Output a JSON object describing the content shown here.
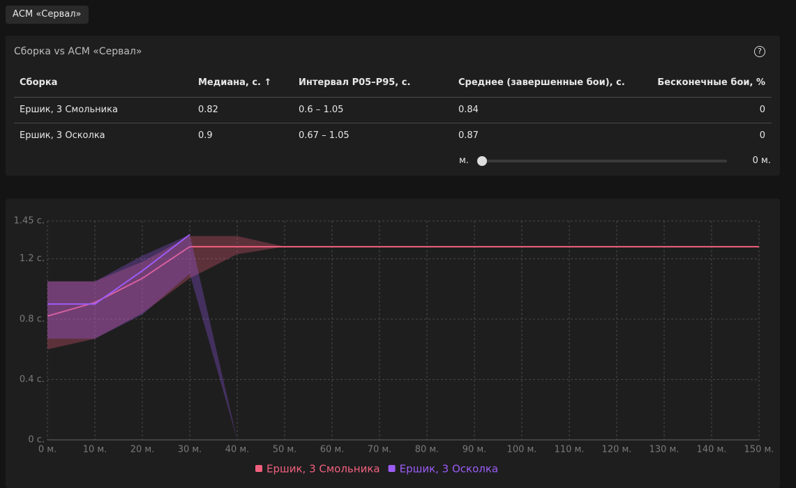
{
  "tag": "АСМ «Сервал»",
  "panel": {
    "title": "Сборка vs АСМ «Сервал»",
    "table": {
      "headers": [
        "Сборка",
        "Медиана, с. ↑",
        "Интервал P05–P95, с.",
        "Среднее (завершенные бои), с.",
        "Бесконечные бои, %"
      ],
      "rows": [
        [
          "Ершик, 3 Смольника",
          0.82,
          "0.6 – 1.05",
          0.84,
          0
        ],
        [
          "Ершик, 3 Осколка",
          0.9,
          "0.67 – 1.05",
          0.87,
          0
        ]
      ]
    },
    "slider": {
      "min_label": "м.",
      "value_label": "0 м."
    }
  },
  "chart_data": {
    "type": "line",
    "x": [
      0,
      10,
      20,
      30,
      40,
      50,
      60,
      70,
      80,
      90,
      100,
      110,
      120,
      130,
      140,
      150
    ],
    "xlim": [
      0,
      150
    ],
    "xticks": [
      {
        "value": 0,
        "label": "0 м."
      },
      {
        "value": 10,
        "label": "10 м."
      },
      {
        "value": 20,
        "label": "20 м."
      },
      {
        "value": 30,
        "label": "30 м."
      },
      {
        "value": 40,
        "label": "40 м."
      },
      {
        "value": 50,
        "label": "50 м."
      },
      {
        "value": 60,
        "label": "60 м."
      },
      {
        "value": 70,
        "label": "70 м."
      },
      {
        "value": 80,
        "label": "80 м."
      },
      {
        "value": 90,
        "label": "90 м."
      },
      {
        "value": 100,
        "label": "100 м."
      },
      {
        "value": 110,
        "label": "110 м."
      },
      {
        "value": 120,
        "label": "120 м."
      },
      {
        "value": 130,
        "label": "130 м."
      },
      {
        "value": 140,
        "label": "140 м."
      },
      {
        "value": 150,
        "label": "150 м."
      }
    ],
    "ylim": [
      0,
      1.45
    ],
    "yticks": [
      {
        "value": 0,
        "label": "0 с."
      },
      {
        "value": 0.4,
        "label": "0.4 с."
      },
      {
        "value": 0.8,
        "label": "0.8 с."
      },
      {
        "value": 1.2,
        "label": "1.2 с."
      },
      {
        "value": 1.45,
        "label": "1.45 с."
      }
    ],
    "grid": true,
    "series": [
      {
        "name": "Ершик, 3 Смольника",
        "color": "#f2607e",
        "values": [
          0.82,
          0.91,
          1.07,
          1.28,
          1.28,
          1.28,
          1.28,
          1.28,
          1.28,
          1.28,
          1.28,
          1.28,
          1.28,
          1.28,
          1.28,
          1.28
        ],
        "band_low": [
          0.6,
          0.67,
          0.84,
          1.07,
          1.23,
          1.28,
          1.28,
          1.28,
          1.28,
          1.28,
          1.28,
          1.28,
          1.28,
          1.28,
          1.28,
          1.28
        ],
        "band_high": [
          1.05,
          1.05,
          1.18,
          1.35,
          1.35,
          1.28,
          1.28,
          1.28,
          1.28,
          1.28,
          1.28,
          1.28,
          1.28,
          1.28,
          1.28,
          1.28
        ]
      },
      {
        "name": "Ершик, 3 Осколка",
        "color": "#9b5cf6",
        "values": [
          0.9,
          0.9,
          1.12,
          1.36,
          null,
          null,
          null,
          null,
          null,
          null,
          null,
          null,
          null,
          null,
          null,
          null
        ],
        "band_low": [
          0.67,
          0.67,
          0.83,
          1.1,
          0,
          null,
          null,
          null,
          null,
          null,
          null,
          null,
          null,
          null,
          null,
          null
        ],
        "band_high": [
          1.05,
          1.05,
          1.22,
          1.36,
          0,
          null,
          null,
          null,
          null,
          null,
          null,
          null,
          null,
          null,
          null,
          null
        ]
      }
    ]
  }
}
